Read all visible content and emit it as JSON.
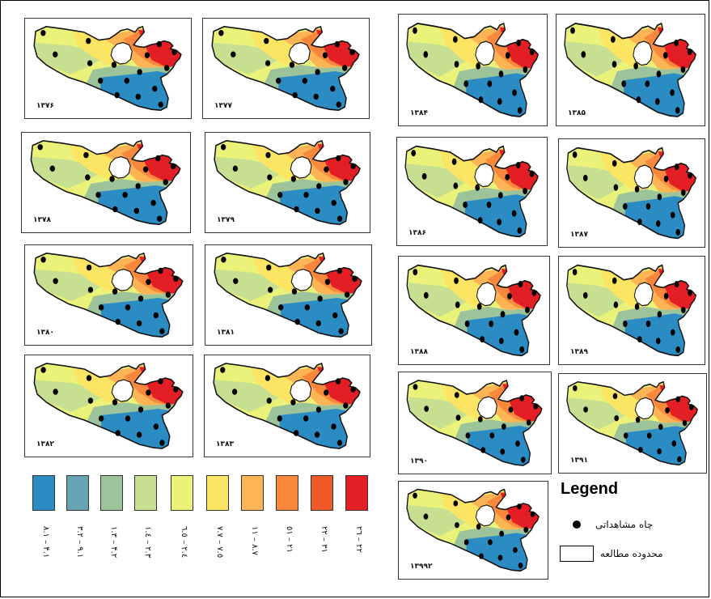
{
  "panels": [
    {
      "id": "p1376",
      "year": "۱۳۷۶"
    },
    {
      "id": "p1377",
      "year": "۱۳۷۷"
    },
    {
      "id": "p1378",
      "year": "۱۳۷۸"
    },
    {
      "id": "p1379",
      "year": "۱۳۷۹"
    },
    {
      "id": "p1380",
      "year": "۱۳۸۰"
    },
    {
      "id": "p1381",
      "year": "۱۳۸۱"
    },
    {
      "id": "p1382",
      "year": "۱۳۸۲"
    },
    {
      "id": "p1383",
      "year": "۱۳۸۳"
    },
    {
      "id": "p1384",
      "year": "۱۳۸۴"
    },
    {
      "id": "p1385",
      "year": "۱۳۸۵"
    },
    {
      "id": "p1386",
      "year": "۱۳۸۶"
    },
    {
      "id": "p1387",
      "year": "۱۳۸۷"
    },
    {
      "id": "p1388",
      "year": "۱۳۸۸"
    },
    {
      "id": "p1389",
      "year": "۱۳۸۹"
    },
    {
      "id": "p1390",
      "year": "۱۳۹۰"
    },
    {
      "id": "p1391",
      "year": "۱۳۹۱"
    },
    {
      "id": "p1392",
      "year": "۱۳۹۹۲"
    }
  ],
  "color_scale": [
    {
      "color": "#2b8cc4",
      "range": "۸.۱ – ۴.۱"
    },
    {
      "color": "#67a3b2",
      "range": "۳.۲ – ۹.۱"
    },
    {
      "color": "#9cc39a",
      "range": "۱.۳ – ۴.۲"
    },
    {
      "color": "#c6df91",
      "range": "۱.٤ – ۲.۳"
    },
    {
      "color": "#eaf27a",
      "range": "٦.٥ – ۲.٤"
    },
    {
      "color": "#fde564",
      "range": "۷.۷ – ۷.٥"
    },
    {
      "color": "#fdb454",
      "range": "۱۱ – ۸.۷"
    },
    {
      "color": "#f9883d",
      "range": "٥۱ – ۲۱"
    },
    {
      "color": "#f05a28",
      "range": "۲۲ – ۳۱"
    },
    {
      "color": "#e31e24",
      "range": "۲٦ – ۲۲"
    }
  ],
  "legend": {
    "title": "Legend",
    "well_label": "چاه مشاهداتی",
    "area_label": "محدوده مطالعه"
  }
}
